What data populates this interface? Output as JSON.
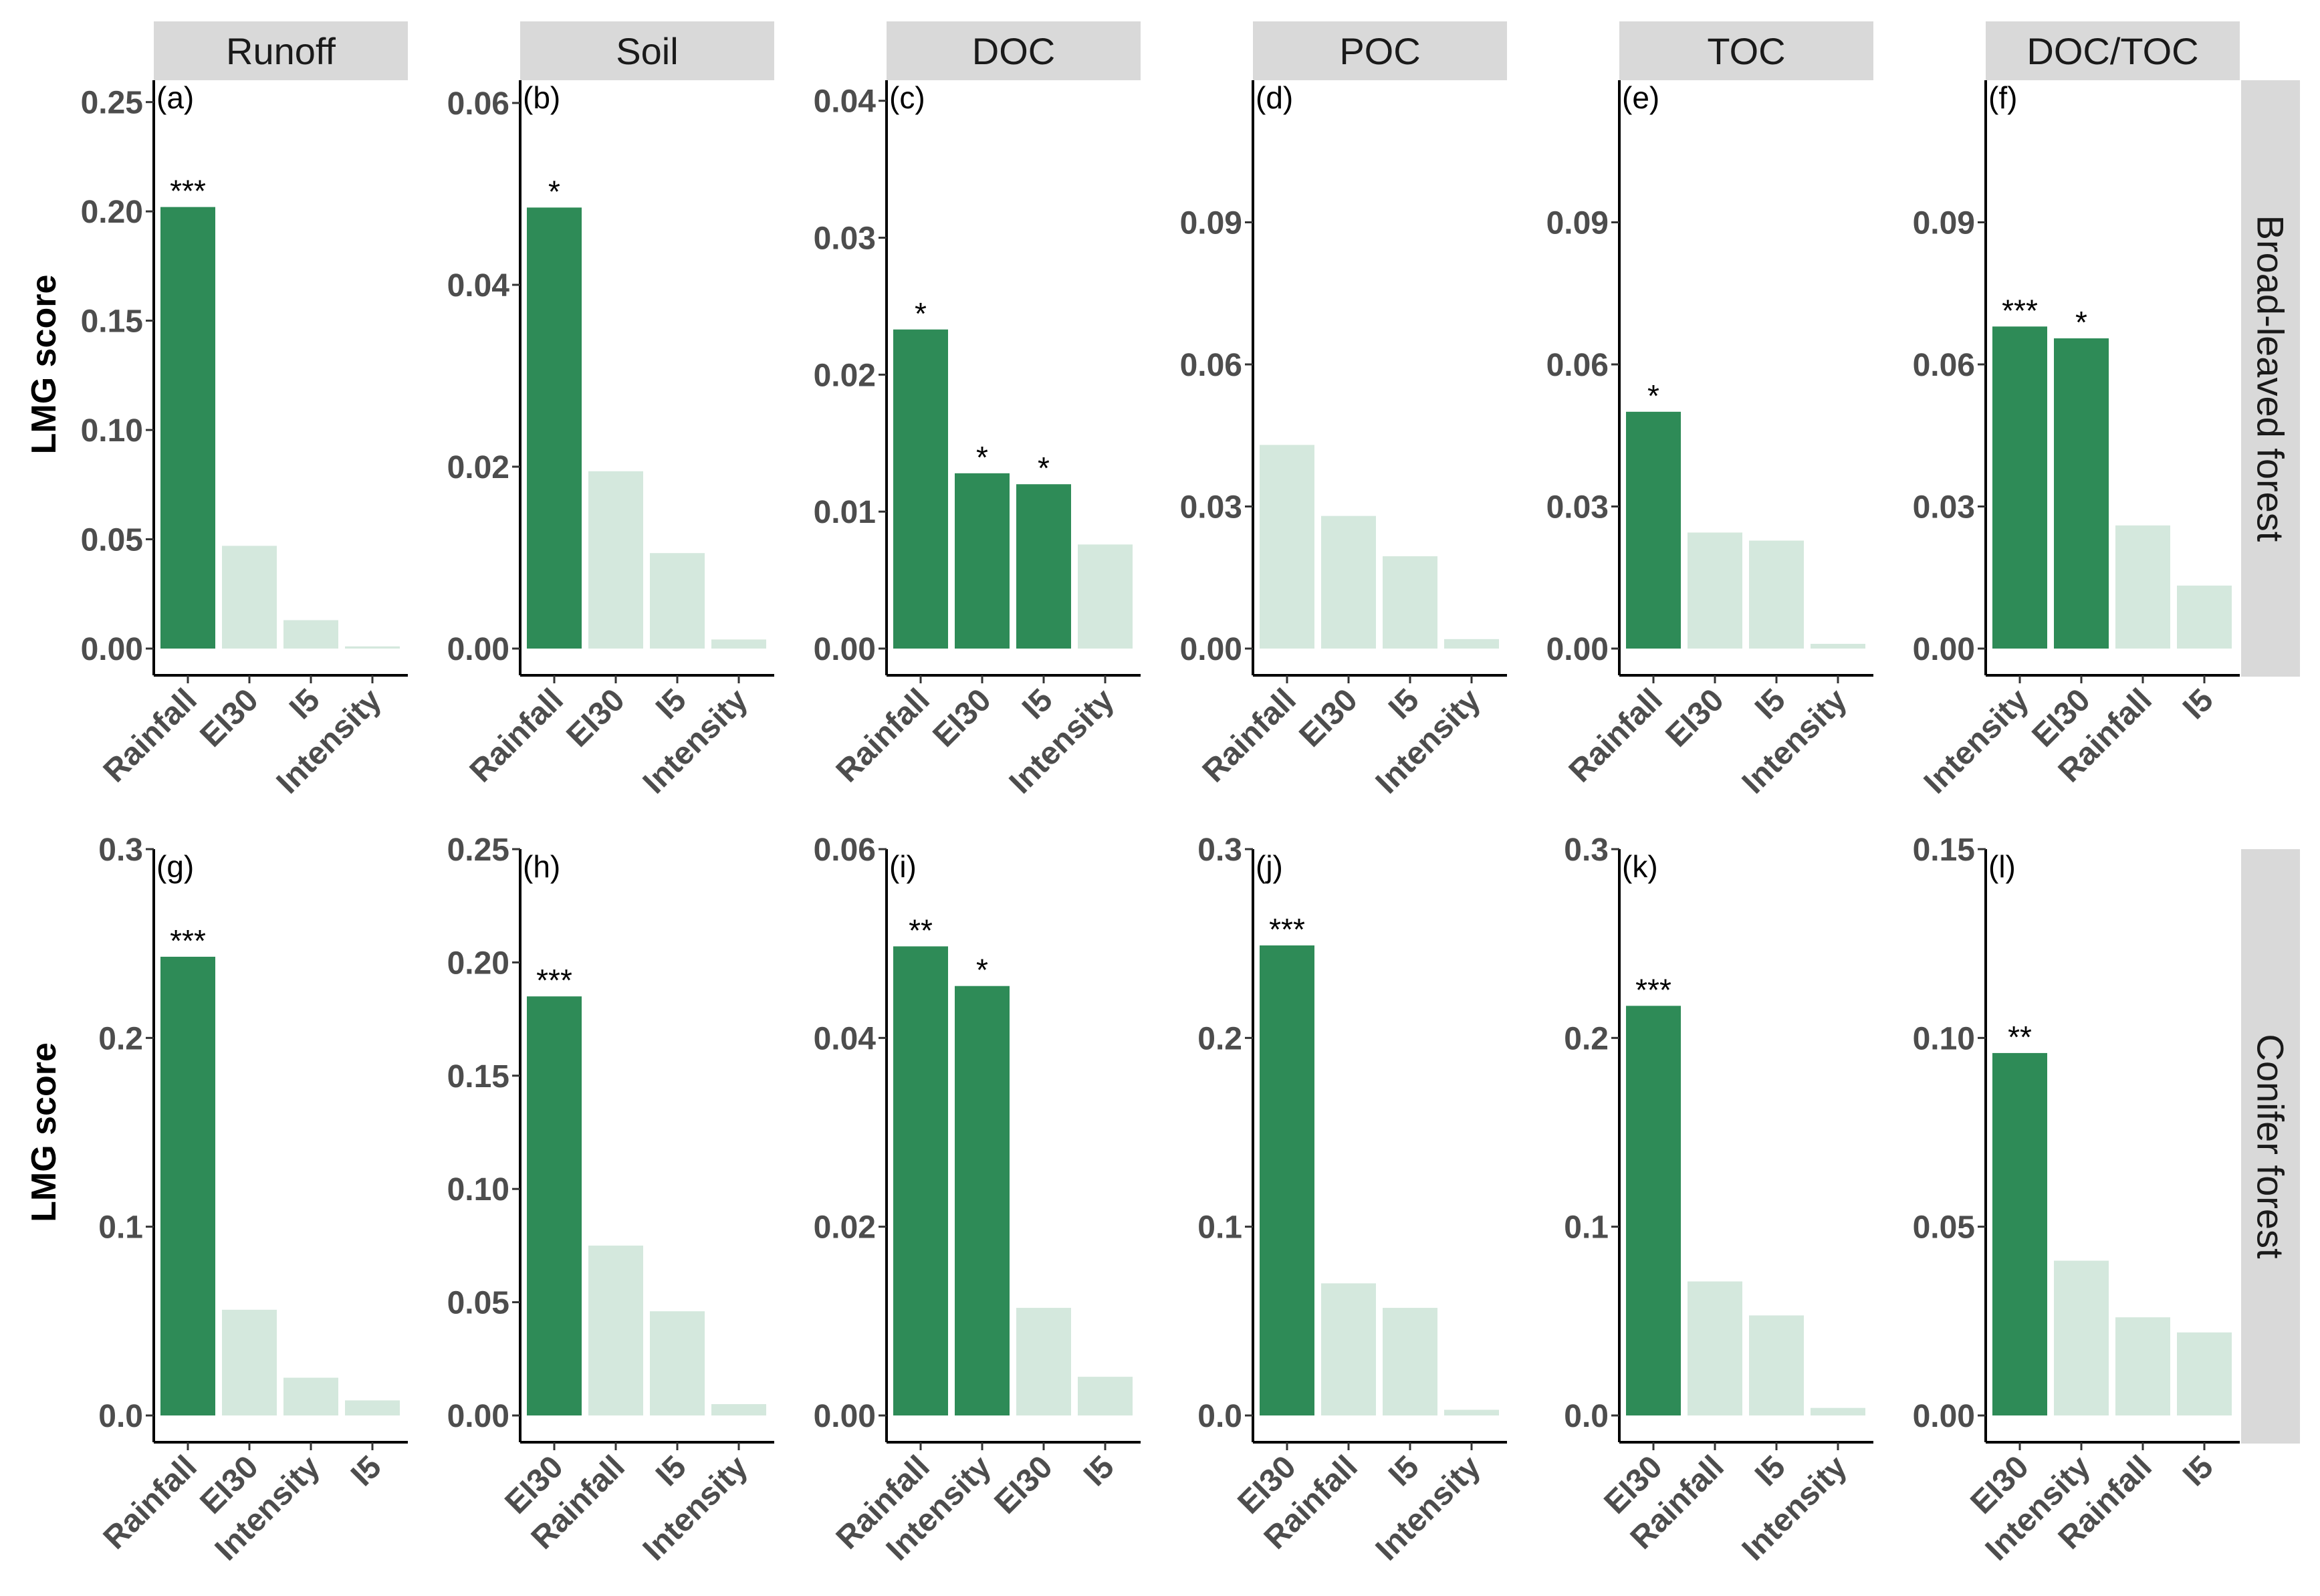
{
  "chart_data": {
    "type": "bar",
    "ylabel": "LMG score",
    "colors": {
      "significant": "#2e8b57",
      "nonsignificant": "#d4e8dd",
      "strip": "#d9d9d9"
    },
    "columns": [
      "Runoff",
      "Soil",
      "DOC",
      "POC",
      "TOC",
      "DOC/TOC"
    ],
    "rows": [
      "Broad-leaved forest",
      "Conifer forest"
    ],
    "panels": [
      {
        "label": "(a)",
        "col": 0,
        "row": 0,
        "ylim": [
          0,
          0.26
        ],
        "yticks": [
          0,
          0.05,
          0.1,
          0.15,
          0.2,
          0.25
        ],
        "yticklabels": [
          "0.00",
          "0.05",
          "0.10",
          "0.15",
          "0.20",
          "0.25"
        ],
        "categories": [
          "Rainfall",
          "EI30",
          "I5",
          "Intensity"
        ],
        "values": [
          0.202,
          0.047,
          0.013,
          0.001
        ],
        "signif": [
          "***",
          "",
          "",
          ""
        ]
      },
      {
        "label": "(b)",
        "col": 1,
        "row": 0,
        "ylim": [
          0,
          0.0625
        ],
        "yticks": [
          0,
          0.02,
          0.04,
          0.06
        ],
        "yticklabels": [
          "0.00",
          "0.02",
          "0.04",
          "0.06"
        ],
        "categories": [
          "Rainfall",
          "EI30",
          "I5",
          "Intensity"
        ],
        "values": [
          0.0485,
          0.0195,
          0.0105,
          0.001
        ],
        "signif": [
          "*",
          "",
          "",
          ""
        ]
      },
      {
        "label": "(c)",
        "col": 2,
        "row": 0,
        "ylim": [
          0,
          0.0415
        ],
        "yticks": [
          0,
          0.01,
          0.02,
          0.03,
          0.04
        ],
        "yticklabels": [
          "0.00",
          "0.01",
          "0.02",
          "0.03",
          "0.04"
        ],
        "categories": [
          "Rainfall",
          "EI30",
          "I5",
          "Intensity"
        ],
        "values": [
          0.0233,
          0.0128,
          0.012,
          0.0076
        ],
        "signif": [
          "*",
          "*",
          "*",
          ""
        ]
      },
      {
        "label": "(d)",
        "col": 3,
        "row": 0,
        "ylim": [
          0,
          0.12
        ],
        "yticks": [
          0,
          0.03,
          0.06,
          0.09
        ],
        "yticklabels": [
          "0.00",
          "0.03",
          "0.06",
          "0.09"
        ],
        "categories": [
          "Rainfall",
          "EI30",
          "I5",
          "Intensity"
        ],
        "values": [
          0.043,
          0.028,
          0.0195,
          0.002
        ],
        "signif": [
          "",
          "",
          "",
          ""
        ]
      },
      {
        "label": "(e)",
        "col": 4,
        "row": 0,
        "ylim": [
          0,
          0.12
        ],
        "yticks": [
          0,
          0.03,
          0.06,
          0.09
        ],
        "yticklabels": [
          "0.00",
          "0.03",
          "0.06",
          "0.09"
        ],
        "categories": [
          "Rainfall",
          "EI30",
          "I5",
          "Intensity"
        ],
        "values": [
          0.05,
          0.0245,
          0.0228,
          0.001
        ],
        "signif": [
          "*",
          "",
          "",
          ""
        ]
      },
      {
        "label": "(f)",
        "col": 5,
        "row": 0,
        "ylim": [
          0,
          0.12
        ],
        "yticks": [
          0,
          0.03,
          0.06,
          0.09
        ],
        "yticklabels": [
          "0.00",
          "0.03",
          "0.06",
          "0.09"
        ],
        "categories": [
          "Intensity",
          "EI30",
          "Rainfall",
          "I5"
        ],
        "values": [
          0.068,
          0.0655,
          0.026,
          0.0133
        ],
        "signif": [
          "***",
          "*",
          "",
          ""
        ]
      },
      {
        "label": "(g)",
        "col": 0,
        "row": 1,
        "ylim": [
          0,
          0.3
        ],
        "yticks": [
          0,
          0.1,
          0.2,
          0.3
        ],
        "yticklabels": [
          "0.0",
          "0.1",
          "0.2",
          "0.3"
        ],
        "categories": [
          "Rainfall",
          "EI30",
          "Intensity",
          "I5"
        ],
        "values": [
          0.243,
          0.056,
          0.02,
          0.008
        ],
        "signif": [
          "***",
          "",
          "",
          ""
        ]
      },
      {
        "label": "(h)",
        "col": 1,
        "row": 1,
        "ylim": [
          0,
          0.25
        ],
        "yticks": [
          0,
          0.05,
          0.1,
          0.15,
          0.2,
          0.25
        ],
        "yticklabels": [
          "0.00",
          "0.05",
          "0.10",
          "0.15",
          "0.20",
          "0.25"
        ],
        "categories": [
          "EI30",
          "Rainfall",
          "I5",
          "Intensity"
        ],
        "values": [
          0.185,
          0.075,
          0.046,
          0.005
        ],
        "signif": [
          "***",
          "",
          "",
          ""
        ]
      },
      {
        "label": "(i)",
        "col": 2,
        "row": 1,
        "ylim": [
          0,
          0.06
        ],
        "yticks": [
          0,
          0.02,
          0.04,
          0.06
        ],
        "yticklabels": [
          "0.00",
          "0.02",
          "0.04",
          "0.06"
        ],
        "categories": [
          "Rainfall",
          "Intensity",
          "EI30",
          "I5"
        ],
        "values": [
          0.0497,
          0.0455,
          0.0114,
          0.0041
        ],
        "signif": [
          "**",
          "*",
          "",
          ""
        ]
      },
      {
        "label": "(j)",
        "col": 3,
        "row": 1,
        "ylim": [
          0,
          0.3
        ],
        "yticks": [
          0,
          0.1,
          0.2,
          0.3
        ],
        "yticklabels": [
          "0.0",
          "0.1",
          "0.2",
          "0.3"
        ],
        "categories": [
          "EI30",
          "Rainfall",
          "I5",
          "Intensity"
        ],
        "values": [
          0.249,
          0.07,
          0.057,
          0.003
        ],
        "signif": [
          "***",
          "",
          "",
          ""
        ]
      },
      {
        "label": "(k)",
        "col": 4,
        "row": 1,
        "ylim": [
          0,
          0.3
        ],
        "yticks": [
          0,
          0.1,
          0.2,
          0.3
        ],
        "yticklabels": [
          "0.0",
          "0.1",
          "0.2",
          "0.3"
        ],
        "categories": [
          "EI30",
          "Rainfall",
          "I5",
          "Intensity"
        ],
        "values": [
          0.217,
          0.071,
          0.053,
          0.004
        ],
        "signif": [
          "***",
          "",
          "",
          ""
        ]
      },
      {
        "label": "(l)",
        "col": 5,
        "row": 1,
        "ylim": [
          0,
          0.15
        ],
        "yticks": [
          0,
          0.05,
          0.1,
          0.15
        ],
        "yticklabels": [
          "0.00",
          "0.05",
          "0.10",
          "0.15"
        ],
        "categories": [
          "EI30",
          "Intensity",
          "Rainfall",
          "I5"
        ],
        "values": [
          0.096,
          0.041,
          0.026,
          0.022
        ],
        "signif": [
          "**",
          "",
          "",
          ""
        ]
      }
    ]
  }
}
